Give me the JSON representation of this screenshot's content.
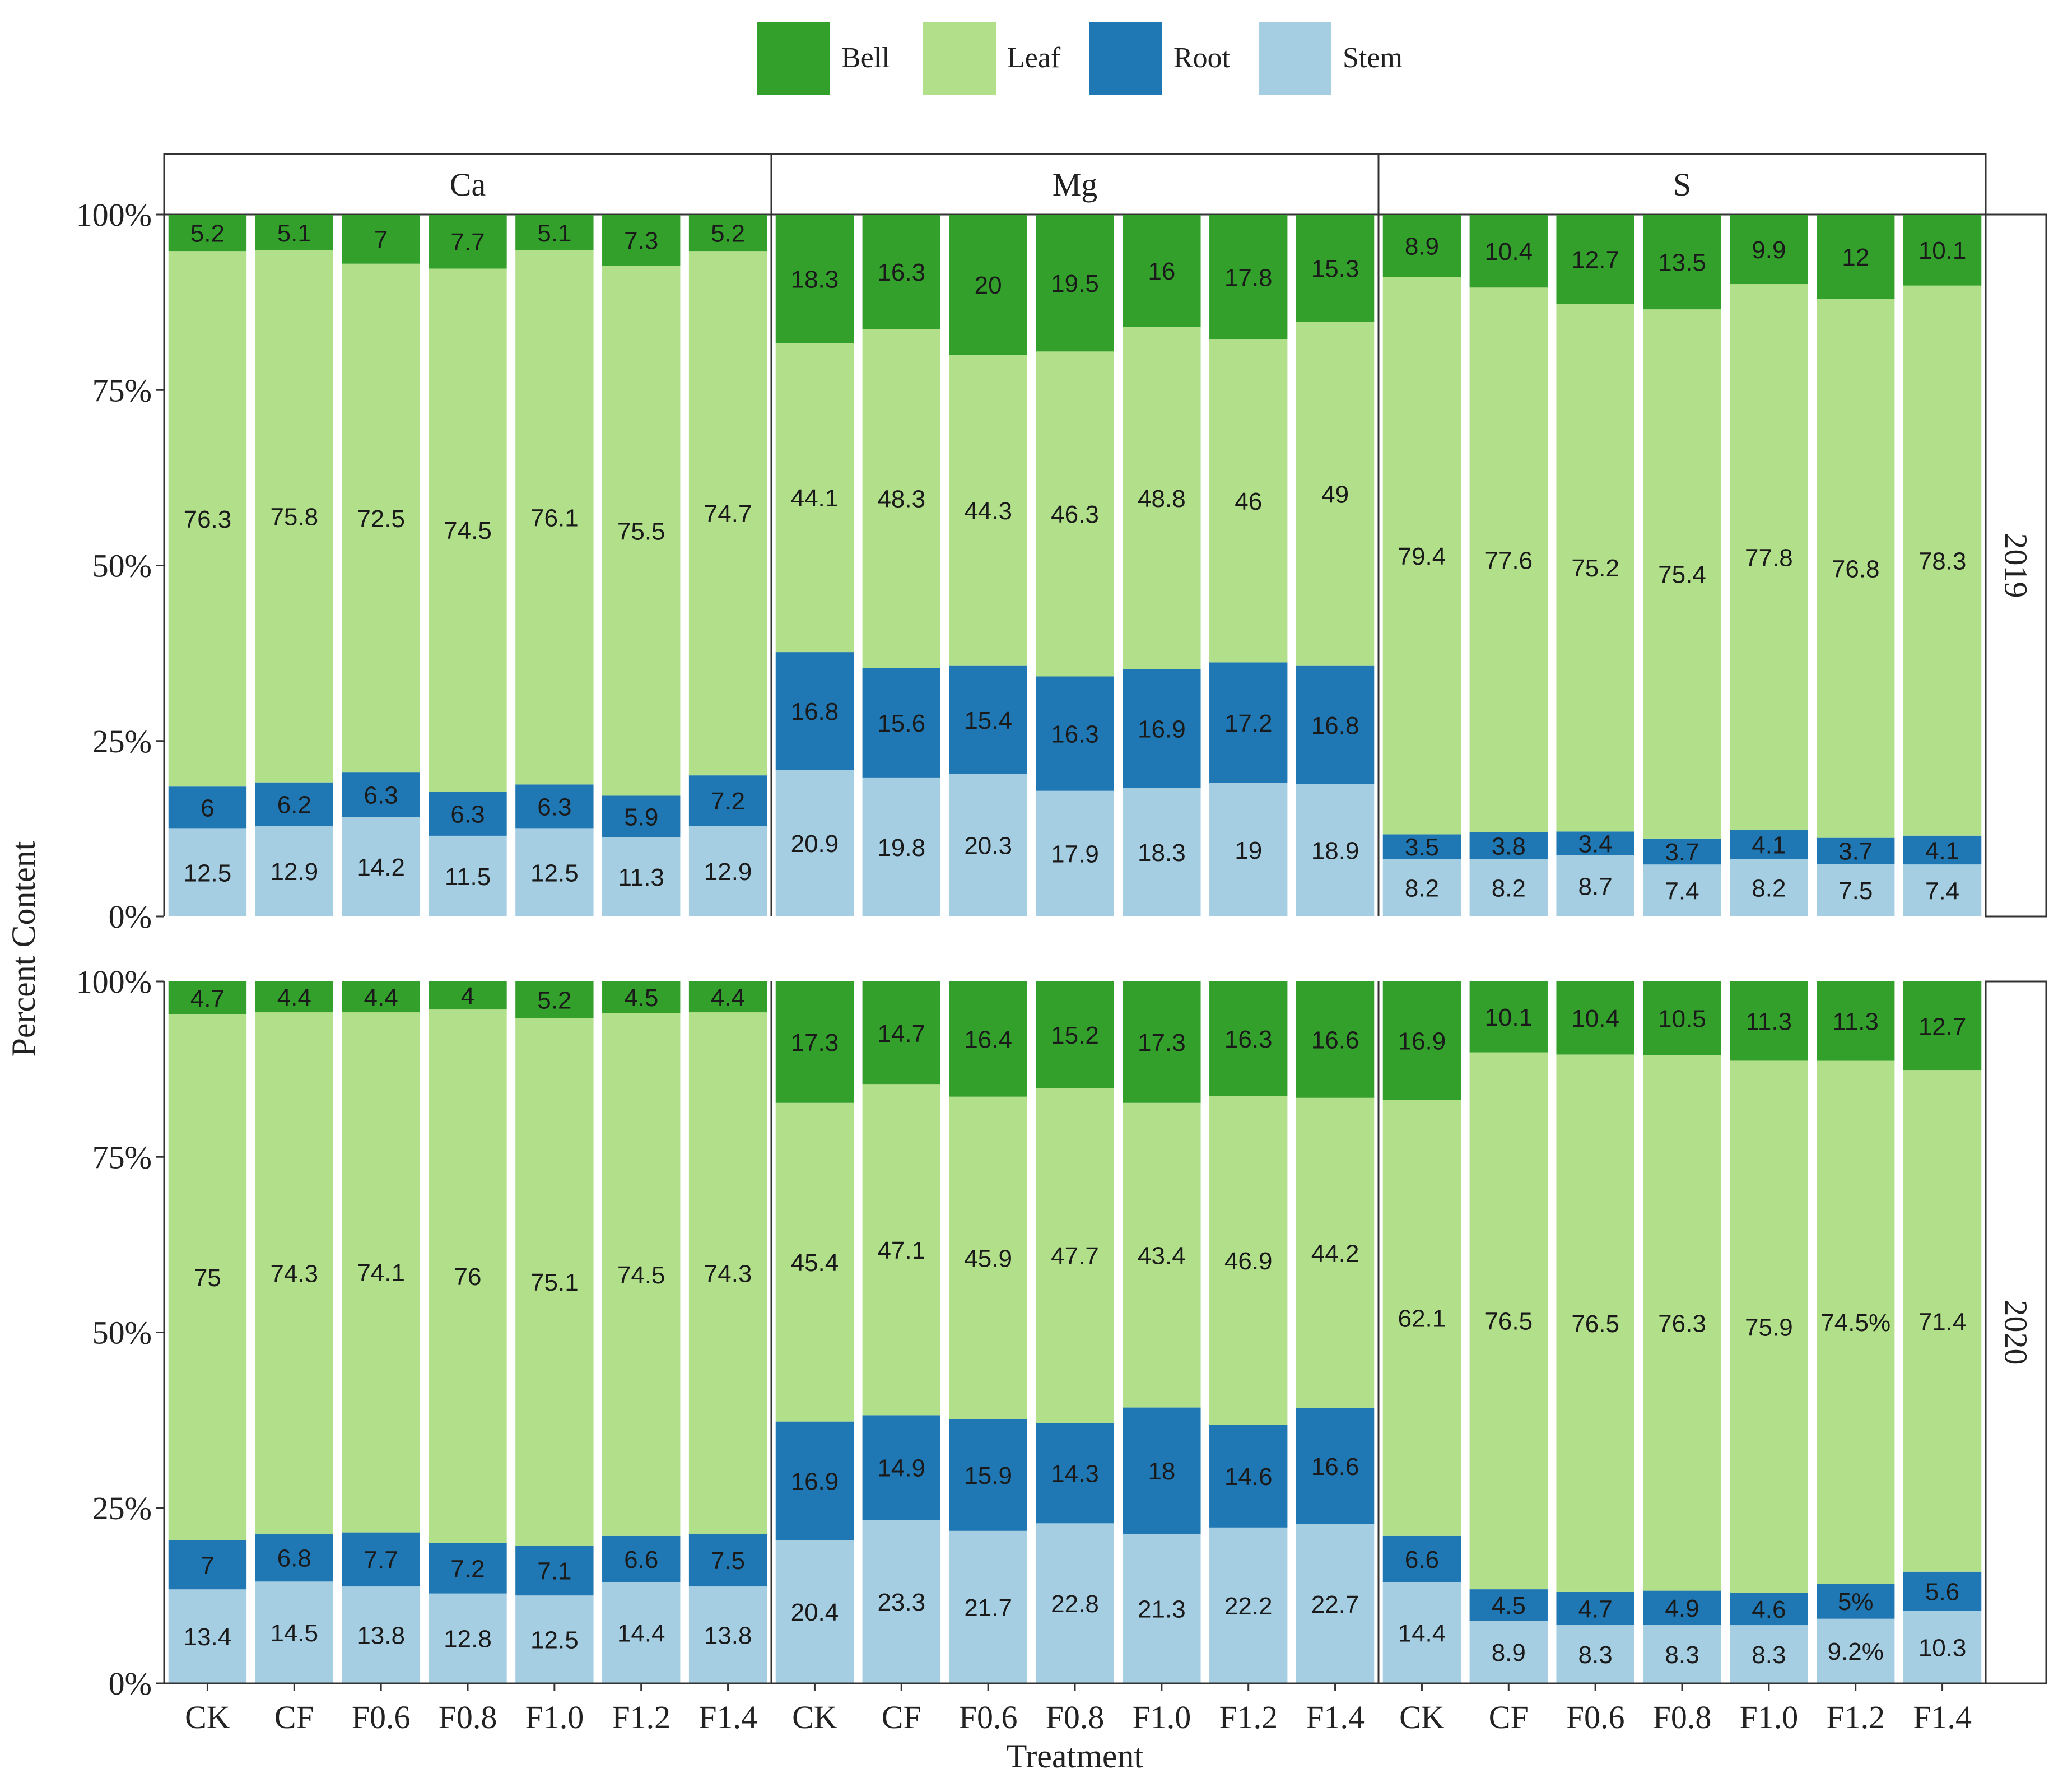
{
  "chart_data": {
    "type": "bar",
    "stacked": true,
    "normalized": true,
    "xlabel": "Treatment",
    "ylabel": "Percent Content",
    "ylim": [
      0,
      100
    ],
    "yticks": [
      "0%",
      "25%",
      "50%",
      "75%",
      "100%"
    ],
    "categories": [
      "CK",
      "CF",
      "F0.6",
      "F0.8",
      "F1.0",
      "F1.2",
      "F1.4"
    ],
    "facet_cols": [
      "Ca",
      "Mg",
      "S"
    ],
    "facet_rows": [
      "2019",
      "2020"
    ],
    "legend": [
      {
        "name": "Bell",
        "color": "#33a02c"
      },
      {
        "name": "Leaf",
        "color": "#b2df8a"
      },
      {
        "name": "Root",
        "color": "#1f78b4"
      },
      {
        "name": "Stem",
        "color": "#a6cee3"
      }
    ],
    "series_order_bottom_to_top": [
      "Stem",
      "Root",
      "Leaf",
      "Bell"
    ],
    "panels": [
      {
        "row": "2019",
        "col": "Ca",
        "Stem": [
          12.5,
          12.9,
          14.2,
          11.5,
          12.5,
          11.3,
          12.9
        ],
        "Root": [
          6,
          6.2,
          6.3,
          6.3,
          6.3,
          5.9,
          7.2
        ],
        "Leaf": [
          76.3,
          75.8,
          72.5,
          74.5,
          76.1,
          75.5,
          74.7
        ],
        "Bell": [
          5.2,
          5.1,
          7,
          7.7,
          5.1,
          7.3,
          5.2
        ]
      },
      {
        "row": "2019",
        "col": "Mg",
        "Stem": [
          20.9,
          19.8,
          20.3,
          17.9,
          18.3,
          19,
          18.9
        ],
        "Root": [
          16.8,
          15.6,
          15.4,
          16.3,
          16.9,
          17.2,
          16.8
        ],
        "Leaf": [
          44.1,
          48.3,
          44.3,
          46.3,
          48.8,
          46,
          49
        ],
        "Bell": [
          18.3,
          16.3,
          20,
          19.5,
          16,
          17.8,
          15.3
        ]
      },
      {
        "row": "2019",
        "col": "S",
        "Stem": [
          8.2,
          8.2,
          8.7,
          7.4,
          8.2,
          7.5,
          7.4
        ],
        "Root": [
          3.5,
          3.8,
          3.4,
          3.7,
          4.1,
          3.7,
          4.1
        ],
        "Leaf": [
          79.4,
          77.6,
          75.2,
          75.4,
          77.8,
          76.8,
          78.3
        ],
        "Bell": [
          8.9,
          10.4,
          12.7,
          13.5,
          9.9,
          12,
          10.1
        ]
      },
      {
        "row": "2020",
        "col": "Ca",
        "Stem": [
          13.4,
          14.5,
          13.8,
          12.8,
          12.5,
          14.4,
          13.8
        ],
        "Root": [
          7,
          6.8,
          7.7,
          7.2,
          7.1,
          6.6,
          7.5
        ],
        "Leaf": [
          75,
          74.3,
          74.1,
          76,
          75.1,
          74.5,
          74.3
        ],
        "Bell": [
          4.7,
          4.4,
          4.4,
          4,
          5.2,
          4.5,
          4.4
        ]
      },
      {
        "row": "2020",
        "col": "Mg",
        "Stem": [
          20.4,
          23.3,
          21.7,
          22.8,
          21.3,
          22.2,
          22.7
        ],
        "Root": [
          16.9,
          14.9,
          15.9,
          14.3,
          18,
          14.6,
          16.6
        ],
        "Leaf": [
          45.4,
          47.1,
          45.9,
          47.7,
          43.4,
          46.9,
          44.2
        ],
        "Bell": [
          17.3,
          14.7,
          16.4,
          15.2,
          17.3,
          16.3,
          16.6
        ]
      },
      {
        "row": "2020",
        "col": "S",
        "Stem": [
          14.4,
          8.9,
          8.3,
          8.3,
          8.3,
          9.2,
          10.3
        ],
        "Root": [
          6.6,
          4.5,
          4.7,
          4.9,
          4.6,
          5,
          5.6
        ],
        "Leaf": [
          62.1,
          76.5,
          76.5,
          76.3,
          75.9,
          74.5,
          71.4
        ],
        "Bell": [
          16.9,
          10.1,
          10.4,
          10.5,
          11.3,
          11.3,
          12.7
        ],
        "label_overrides": {
          "Root": {
            "5": "5%"
          },
          "Stem": {
            "5": "9.2%"
          },
          "Leaf": {
            "5": "74.5%"
          }
        }
      }
    ]
  }
}
